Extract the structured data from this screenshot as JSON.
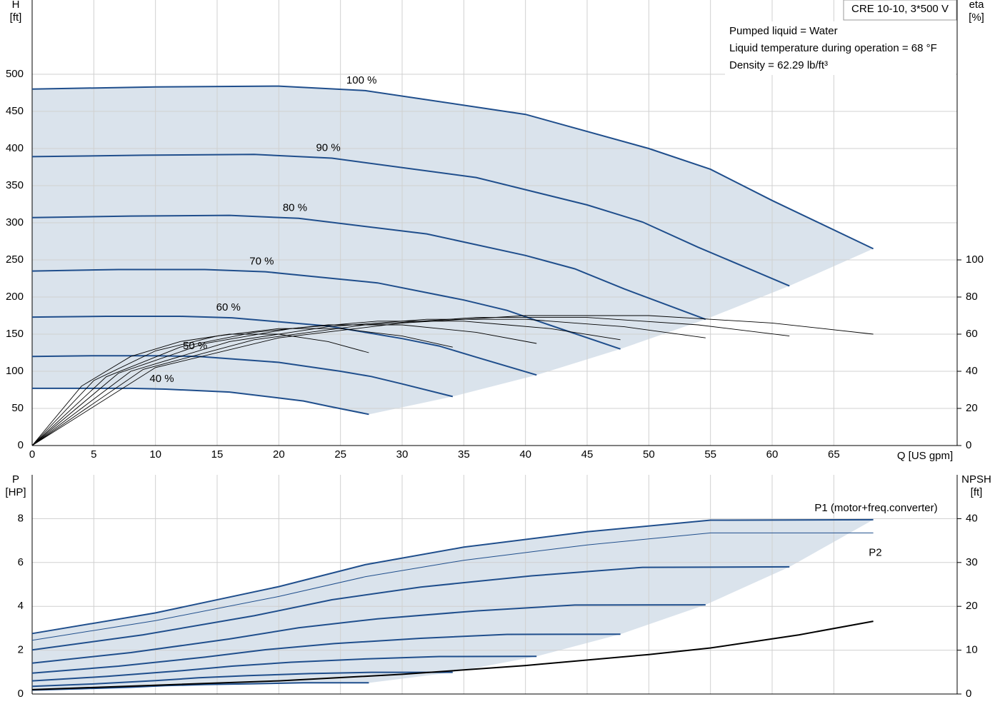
{
  "chart_data": [
    {
      "type": "line",
      "title": "CRE 10-10, 3*500 V",
      "annotations": [
        "Pumped liquid = Water",
        "Liquid temperature during operation = 68 °F",
        "Density = 62.29 lb/ft³"
      ],
      "x_label": "Q [US gpm]",
      "y_label": [
        "H",
        "[ft]"
      ],
      "y2_label": [
        "eta",
        "[%]"
      ],
      "xlim": [
        0,
        75
      ],
      "xticks": [
        0,
        5,
        10,
        15,
        20,
        25,
        30,
        35,
        40,
        45,
        50,
        55,
        60,
        65
      ],
      "xtick_labels": true,
      "ylim": [
        0,
        600
      ],
      "yticks": [
        0,
        50,
        100,
        150,
        200,
        250,
        300,
        350,
        400,
        450,
        500
      ],
      "y2lim": [
        0,
        240
      ],
      "y2ticks": [
        0,
        20,
        40,
        60,
        80,
        100
      ],
      "grid": true,
      "area_color": "#d3dee9",
      "series": [
        {
          "name": "100 %",
          "color": "#1f4e8c",
          "x": [
            0,
            10,
            20,
            27,
            40,
            50,
            55,
            60,
            68.2
          ],
          "values": [
            480,
            483,
            484,
            478,
            446,
            400,
            372,
            330,
            265
          ]
        },
        {
          "name": "90 %",
          "color": "#1f4e8c",
          "x": [
            0,
            9,
            18,
            24.3,
            36,
            45,
            49.5,
            54,
            61.4
          ],
          "values": [
            389,
            391,
            392,
            387,
            361,
            324,
            301,
            267,
            215
          ]
        },
        {
          "name": "80 %",
          "color": "#1f4e8c",
          "x": [
            0,
            8,
            16,
            21.6,
            32,
            40,
            44,
            48,
            54.6
          ],
          "values": [
            307,
            309,
            310,
            306,
            285,
            256,
            238,
            211,
            170
          ]
        },
        {
          "name": "70 %",
          "color": "#1f4e8c",
          "x": [
            0,
            7,
            14,
            18.9,
            28,
            35,
            38.5,
            42,
            47.7
          ],
          "values": [
            235,
            237,
            237,
            234,
            219,
            196,
            182,
            162,
            130
          ]
        },
        {
          "name": "60 %",
          "color": "#1f4e8c",
          "x": [
            0,
            6,
            12,
            16.2,
            24,
            30,
            33,
            36,
            40.9
          ],
          "values": [
            173,
            174,
            174,
            172,
            161,
            144,
            134,
            119,
            95
          ]
        },
        {
          "name": "50 %",
          "color": "#1f4e8c",
          "x": [
            0,
            5,
            10,
            13.5,
            20,
            25,
            27.5,
            30,
            34.1
          ],
          "values": [
            120,
            121,
            121,
            120,
            112,
            100,
            93,
            83,
            66
          ]
        },
        {
          "name": "40 %",
          "color": "#1f4e8c",
          "x": [
            0,
            4,
            8,
            10.8,
            16,
            20,
            22,
            24,
            27.3
          ],
          "values": [
            77,
            77,
            77,
            76,
            72,
            64,
            60,
            53,
            42
          ]
        },
        {
          "axis": "y2",
          "color": "#000000",
          "x": [
            0,
            10,
            20,
            30,
            40,
            50,
            55,
            60,
            68.2
          ],
          "values": [
            0,
            42,
            58,
            66,
            70,
            70,
            68,
            66,
            60
          ]
        },
        {
          "axis": "y2",
          "color": "#000000",
          "x": [
            0,
            9,
            18,
            27,
            36,
            45,
            49.5,
            54,
            61.4
          ],
          "values": [
            0,
            41,
            57,
            65,
            69,
            69,
            67,
            65,
            59
          ]
        },
        {
          "axis": "y2",
          "color": "#000000",
          "x": [
            0,
            8,
            16,
            24,
            32,
            40,
            44,
            48,
            54.6
          ],
          "values": [
            0,
            40,
            56,
            64,
            68,
            68,
            66,
            64,
            58
          ]
        },
        {
          "axis": "y2",
          "color": "#000000",
          "x": [
            0,
            7,
            14,
            21,
            28,
            35,
            38.5,
            42,
            47.7
          ],
          "values": [
            0,
            39,
            55,
            63,
            67,
            67,
            65,
            63,
            57
          ]
        },
        {
          "axis": "y2",
          "color": "#000000",
          "x": [
            0,
            6,
            12,
            18,
            24,
            30,
            33,
            36,
            40.9
          ],
          "values": [
            0,
            37,
            53,
            61,
            65,
            65,
            63,
            61,
            55
          ]
        },
        {
          "axis": "y2",
          "color": "#000000",
          "x": [
            0,
            5,
            10,
            15,
            20,
            25,
            27.5,
            30,
            34.1
          ],
          "values": [
            0,
            35,
            51,
            59,
            63,
            63,
            61,
            59,
            53
          ]
        },
        {
          "axis": "y2",
          "color": "#000000",
          "x": [
            0,
            4,
            8,
            12,
            16,
            20,
            22,
            24,
            27.3
          ],
          "values": [
            0,
            32,
            48,
            56,
            60,
            60,
            58,
            56,
            50
          ]
        }
      ]
    },
    {
      "type": "line",
      "y_label": [
        "P",
        "[HP]"
      ],
      "y2_label": [
        "NPSH",
        "[ft]"
      ],
      "xlim": [
        0,
        75
      ],
      "xticks": [
        0,
        5,
        10,
        15,
        20,
        25,
        30,
        35,
        40,
        45,
        50,
        55,
        60,
        65
      ],
      "xtick_labels": false,
      "ylim": [
        0,
        10
      ],
      "yticks": [
        0,
        2,
        4,
        6,
        8
      ],
      "y2lim": [
        0,
        50
      ],
      "y2ticks": [
        0,
        10,
        20,
        30,
        40
      ],
      "grid": true,
      "area_color": "#d3dee9",
      "series": [
        {
          "name": "P1 (motor+freq.converter)",
          "color": "#1f4e8c",
          "x": [
            0,
            10,
            20,
            27,
            35,
            45,
            55,
            68.2
          ],
          "values": [
            2.76,
            3.7,
            4.9,
            5.9,
            6.7,
            7.4,
            7.93,
            7.95
          ]
        },
        {
          "color": "#1f4e8c",
          "x": [
            0,
            9,
            18,
            24.3,
            31.5,
            40.5,
            49.5,
            61.4
          ],
          "values": [
            2.01,
            2.7,
            3.57,
            4.3,
            4.88,
            5.39,
            5.78,
            5.8
          ]
        },
        {
          "color": "#1f4e8c",
          "x": [
            0,
            8,
            16,
            21.6,
            28,
            36,
            44,
            54.6
          ],
          "values": [
            1.41,
            1.89,
            2.51,
            3.02,
            3.43,
            3.79,
            4.06,
            4.07
          ]
        },
        {
          "color": "#1f4e8c",
          "x": [
            0,
            7,
            14,
            18.9,
            24.5,
            31.5,
            38.5,
            47.7
          ],
          "values": [
            0.95,
            1.27,
            1.68,
            2.02,
            2.3,
            2.54,
            2.72,
            2.73
          ]
        },
        {
          "color": "#1f4e8c",
          "x": [
            0,
            6,
            12,
            16.2,
            21,
            27,
            33,
            40.9
          ],
          "values": [
            0.6,
            0.8,
            1.06,
            1.27,
            1.45,
            1.6,
            1.71,
            1.72
          ]
        },
        {
          "color": "#1f4e8c",
          "x": [
            0,
            5,
            10,
            13.5,
            17.5,
            22.5,
            27.5,
            34.1
          ],
          "values": [
            0.35,
            0.46,
            0.61,
            0.74,
            0.84,
            0.93,
            0.99,
            0.99
          ]
        },
        {
          "color": "#1f4e8c",
          "x": [
            0,
            4,
            8,
            10.8,
            14,
            18,
            22,
            27.3
          ],
          "values": [
            0.18,
            0.24,
            0.31,
            0.38,
            0.43,
            0.47,
            0.51,
            0.51
          ]
        },
        {
          "name": "P2",
          "color": "#1f4e8c",
          "x": [
            0,
            10,
            20,
            27,
            35,
            45,
            55,
            68.2
          ],
          "values": [
            2.45,
            3.35,
            4.45,
            5.35,
            6.1,
            6.8,
            7.35,
            7.35
          ]
        },
        {
          "axis": "y2",
          "color": "#000000",
          "x": [
            0,
            10,
            20,
            30,
            40,
            50,
            55,
            62.2,
            68.2
          ],
          "values": [
            1,
            2,
            3,
            4.5,
            6.5,
            9,
            10.5,
            13.5,
            16.6
          ]
        }
      ]
    }
  ]
}
